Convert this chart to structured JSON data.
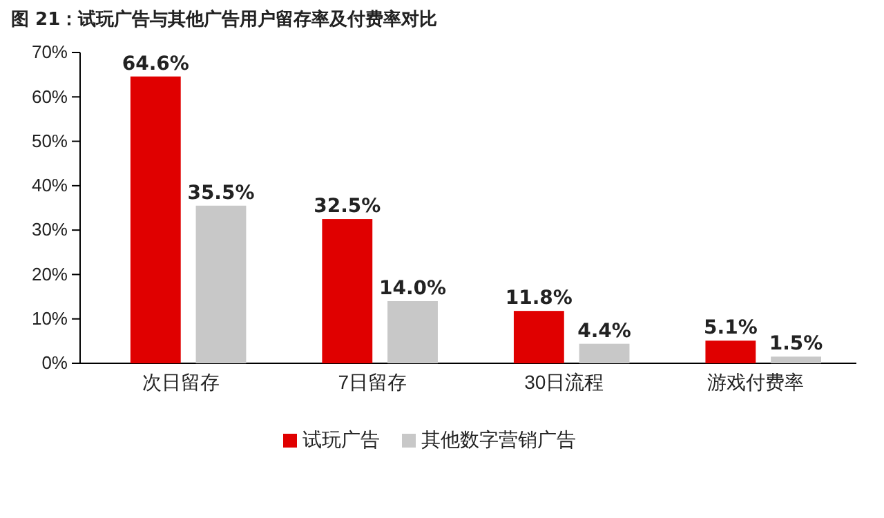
{
  "chart_data": {
    "type": "bar",
    "title": "图 21：试玩广告与其他广告用户留存率及付费率对比",
    "categories": [
      "次日留存",
      "7日留存",
      "30日流程",
      "游戏付费率"
    ],
    "series": [
      {
        "name": "试玩广告",
        "color": "#e00000",
        "values": [
          64.6,
          32.5,
          11.8,
          5.1
        ],
        "value_labels": [
          "64.6%",
          "32.5%",
          "11.8%",
          "5.1%"
        ]
      },
      {
        "name": "其他数字营销广告",
        "color": "#c8c8c8",
        "values": [
          35.5,
          14.0,
          4.4,
          1.5
        ],
        "value_labels": [
          "35.5%",
          "14.0%",
          "4.4%",
          "1.5%"
        ]
      }
    ],
    "ylim": [
      0,
      70
    ],
    "yticks": [
      {
        "value": 0,
        "label": "0%"
      },
      {
        "value": 10,
        "label": "10%"
      },
      {
        "value": 20,
        "label": "20%"
      },
      {
        "value": 30,
        "label": "30%"
      },
      {
        "value": 40,
        "label": "40%"
      },
      {
        "value": 50,
        "label": "50%"
      },
      {
        "value": 60,
        "label": "60%"
      },
      {
        "value": 70,
        "label": "70%"
      }
    ],
    "grid": false,
    "legend": "bottom"
  }
}
